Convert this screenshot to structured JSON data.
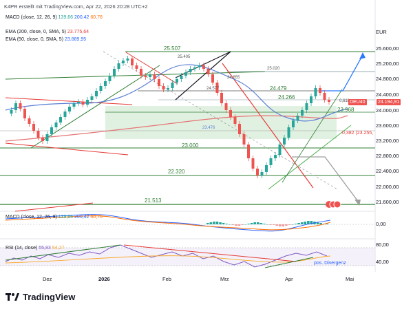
{
  "header": {
    "credit": "K4PR erstellt mit TradingView.com, Apr 22, 2026 20:28 UTC+2"
  },
  "indicators": {
    "macd_top": {
      "label": "MACD (close, 12, 26, 9)",
      "v1": "139,66",
      "v2": "200,42",
      "v3": "60,76"
    },
    "ema200": {
      "label": "EMA (200, close, 0, SMA, 5)",
      "value": "23.775,64"
    },
    "ema50": {
      "label": "EMA (50, close, 0, SMA, 5)",
      "value": "23.889,95"
    },
    "macd_pane": {
      "label": "MACD (close, 12, 26, 9)",
      "v1": "139,66",
      "v2": "200,42",
      "v3": "60,76"
    },
    "rsi_pane": {
      "label": "RSI (14, close)",
      "v1": "55,83",
      "v2": "54,27"
    }
  },
  "axis": {
    "currency": "EUR",
    "price_ticks": [
      "25.600,00",
      "25.200,00",
      "24.800,00",
      "24.400,00",
      "24.000,00",
      "23.600,00",
      "23.200,00",
      "22.800,00",
      "22.400,00",
      "22.000,00",
      "21.600,00"
    ],
    "macd_ticks": [
      "0,00"
    ],
    "rsi_ticks": [
      "80,00",
      "40,00"
    ],
    "x_labels": [
      "Dez",
      "2026",
      "Feb",
      "Mrz",
      "Apr",
      "Mai"
    ]
  },
  "price_tag": {
    "symbol": "DEU40",
    "value": "24.194,91"
  },
  "fib_tag": "0,382 (23.255,",
  "chart_labels": {
    "l25507": "25.507",
    "l25405": "25.405",
    "l25020": "25.020",
    "l24479": "24.479",
    "l24266": "24.266",
    "l24577": "24.577",
    "l24655": "24.655",
    "l0618": "0,618",
    "l23968": "23.968",
    "l23476": "23.476",
    "l23000": "23.000",
    "l22320": "22.320",
    "l21513": "21.513",
    "posdiv": "pos. Divergenz"
  },
  "colors": {
    "bull": "#26a69a",
    "bear": "#ef5350",
    "ema200": "#e57373",
    "ema50": "#5b7fd6",
    "zone": "#c8e6c9",
    "price_tag": "#ef5350"
  },
  "branding": {
    "name": "TradingView",
    "logo": "tradingview-logo-icon"
  }
}
